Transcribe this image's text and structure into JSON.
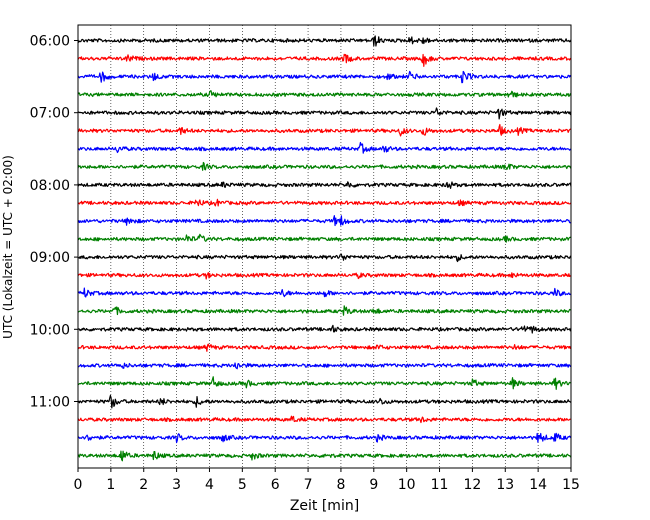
{
  "chart_data": {
    "type": "line",
    "title": "",
    "xlabel": "Zeit  [min]",
    "ylabel": "UTC (Lokalzeit = UTC + 02:00)",
    "xlim": [
      0,
      15
    ],
    "x_ticks": [
      0,
      1,
      2,
      3,
      4,
      5,
      6,
      7,
      8,
      9,
      10,
      11,
      12,
      13,
      14,
      15
    ],
    "x_tick_labels": [
      "0",
      "1",
      "2",
      "3",
      "4",
      "5",
      "6",
      "7",
      "8",
      "9",
      "10",
      "11",
      "12",
      "13",
      "14",
      "15"
    ],
    "y_tick_labels": [
      "06:00",
      "07:00",
      "08:00",
      "09:00",
      "10:00",
      "11:00"
    ],
    "traces_per_hour": 4,
    "trace_minutes": 15,
    "grid": {
      "x": true,
      "style": "dotted"
    },
    "series": [
      {
        "start": "06:00",
        "color": "#000000"
      },
      {
        "start": "06:15",
        "color": "#ff0000"
      },
      {
        "start": "06:30",
        "color": "#0000ff"
      },
      {
        "start": "06:45",
        "color": "#008000"
      },
      {
        "start": "07:00",
        "color": "#000000"
      },
      {
        "start": "07:15",
        "color": "#ff0000"
      },
      {
        "start": "07:30",
        "color": "#0000ff"
      },
      {
        "start": "07:45",
        "color": "#008000"
      },
      {
        "start": "08:00",
        "color": "#000000"
      },
      {
        "start": "08:15",
        "color": "#ff0000"
      },
      {
        "start": "08:30",
        "color": "#0000ff"
      },
      {
        "start": "08:45",
        "color": "#008000"
      },
      {
        "start": "09:00",
        "color": "#000000"
      },
      {
        "start": "09:15",
        "color": "#ff0000"
      },
      {
        "start": "09:30",
        "color": "#0000ff"
      },
      {
        "start": "09:45",
        "color": "#008000"
      },
      {
        "start": "10:00",
        "color": "#000000"
      },
      {
        "start": "10:15",
        "color": "#ff0000"
      },
      {
        "start": "10:30",
        "color": "#0000ff"
      },
      {
        "start": "10:45",
        "color": "#008000"
      },
      {
        "start": "11:00",
        "color": "#000000"
      },
      {
        "start": "11:15",
        "color": "#ff0000"
      },
      {
        "start": "11:30",
        "color": "#0000ff"
      },
      {
        "start": "11:45",
        "color": "#008000"
      }
    ],
    "events": [
      [
        {
          "t": 9.0,
          "a": 0.9
        },
        {
          "t": 10.1,
          "a": 0.5
        },
        {
          "t": 10.5,
          "a": 0.4
        }
      ],
      [
        {
          "t": 1.5,
          "a": 0.5
        },
        {
          "t": 8.1,
          "a": 0.7
        },
        {
          "t": 10.5,
          "a": 1.0
        }
      ],
      [
        {
          "t": 0.7,
          "a": 0.8
        },
        {
          "t": 2.3,
          "a": 0.5
        },
        {
          "t": 9.4,
          "a": 0.4
        },
        {
          "t": 10.1,
          "a": 0.6
        },
        {
          "t": 11.7,
          "a": 1.0
        }
      ],
      [
        {
          "t": 4.0,
          "a": 0.5
        },
        {
          "t": 13.1,
          "a": 0.6
        }
      ],
      [
        {
          "t": 10.9,
          "a": 0.5
        },
        {
          "t": 12.8,
          "a": 0.7
        }
      ],
      [
        {
          "t": 3.1,
          "a": 0.5
        },
        {
          "t": 9.8,
          "a": 0.6
        },
        {
          "t": 10.5,
          "a": 0.6
        },
        {
          "t": 12.8,
          "a": 0.8
        },
        {
          "t": 13.4,
          "a": 0.4
        }
      ],
      [
        {
          "t": 1.2,
          "a": 0.4
        },
        {
          "t": 8.6,
          "a": 0.7
        },
        {
          "t": 9.3,
          "a": 0.5
        }
      ],
      [
        {
          "t": 3.8,
          "a": 0.4
        },
        {
          "t": 13.0,
          "a": 0.6
        }
      ],
      [
        {
          "t": 8.2,
          "a": 0.4
        },
        {
          "t": 11.2,
          "a": 0.7
        },
        {
          "t": 4.4,
          "a": 0.3
        }
      ],
      [
        {
          "t": 3.6,
          "a": 0.6
        },
        {
          "t": 4.2,
          "a": 0.4
        },
        {
          "t": 11.6,
          "a": 0.3
        }
      ],
      [
        {
          "t": 1.5,
          "a": 0.6
        },
        {
          "t": 7.8,
          "a": 0.5
        },
        {
          "t": 8.0,
          "a": 0.5
        }
      ],
      [
        {
          "t": 3.3,
          "a": 0.5
        },
        {
          "t": 3.7,
          "a": 0.5
        },
        {
          "t": 13.0,
          "a": 0.3
        }
      ],
      [
        {
          "t": 8.0,
          "a": 0.5
        },
        {
          "t": 11.5,
          "a": 0.5
        }
      ],
      [
        {
          "t": 3.9,
          "a": 0.3
        },
        {
          "t": 8.5,
          "a": 0.3
        },
        {
          "t": 13.2,
          "a": 0.3
        }
      ],
      [
        {
          "t": 0.2,
          "a": 0.6
        },
        {
          "t": 6.2,
          "a": 0.5
        },
        {
          "t": 7.5,
          "a": 0.4
        },
        {
          "t": 14.5,
          "a": 0.5
        }
      ],
      [
        {
          "t": 1.1,
          "a": 0.6
        },
        {
          "t": 8.1,
          "a": 0.6
        },
        {
          "t": 9.0,
          "a": 0.4
        }
      ],
      [
        {
          "t": 7.7,
          "a": 0.5
        },
        {
          "t": 13.5,
          "a": 0.5
        },
        {
          "t": 13.8,
          "a": 0.4
        }
      ],
      [
        {
          "t": 3.9,
          "a": 0.5
        },
        {
          "t": 9.1,
          "a": 0.3
        },
        {
          "t": 13.3,
          "a": 0.3
        }
      ],
      [
        {
          "t": 1.3,
          "a": 0.4
        },
        {
          "t": 4.8,
          "a": 0.5
        }
      ],
      [
        {
          "t": 4.1,
          "a": 0.7
        },
        {
          "t": 5.1,
          "a": 0.5
        },
        {
          "t": 12.0,
          "a": 0.5
        },
        {
          "t": 13.2,
          "a": 0.7
        },
        {
          "t": 14.5,
          "a": 0.8
        }
      ],
      [
        {
          "t": 1.0,
          "a": 1.0
        },
        {
          "t": 2.5,
          "a": 0.5
        },
        {
          "t": 3.6,
          "a": 0.6
        },
        {
          "t": 9.2,
          "a": 0.4
        }
      ],
      [
        {
          "t": 6.5,
          "a": 0.4
        },
        {
          "t": 10.4,
          "a": 0.4
        }
      ],
      [
        {
          "t": 0.3,
          "a": 0.4
        },
        {
          "t": 3.0,
          "a": 0.5
        },
        {
          "t": 4.4,
          "a": 0.5
        },
        {
          "t": 9.1,
          "a": 0.4
        },
        {
          "t": 14.0,
          "a": 0.9
        },
        {
          "t": 14.5,
          "a": 0.6
        }
      ],
      [
        {
          "t": 1.3,
          "a": 1.0
        },
        {
          "t": 2.3,
          "a": 0.6
        },
        {
          "t": 5.3,
          "a": 0.5
        },
        {
          "t": 7.5,
          "a": 0.3
        }
      ]
    ]
  }
}
